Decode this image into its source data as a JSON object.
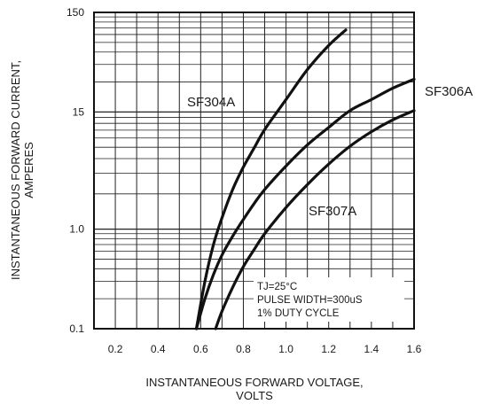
{
  "chart_data": {
    "type": "line",
    "title": "",
    "xlabel_lines": [
      "INSTANTANEOUS FORWARD VOLTAGE,",
      "VOLTS"
    ],
    "ylabel_lines": [
      "INSTANTANEOUS FORWARD CURRENT,",
      "AMPERES"
    ],
    "x_scale": "linear",
    "y_scale": "log",
    "xlim": [
      0.1,
      1.6
    ],
    "ylim": [
      0.1,
      150
    ],
    "x_ticks": [
      0.2,
      0.4,
      0.6,
      0.8,
      1.0,
      1.2,
      1.4,
      1.6
    ],
    "x_tick_labels": [
      "0.2",
      "0.4",
      "0.6",
      "0.8",
      "1.0",
      "1.2",
      "1.4",
      "1.6"
    ],
    "y_ticks": [
      0.1,
      1.0,
      15,
      150
    ],
    "y_tick_labels": [
      "0.1",
      "1.0",
      "15",
      "150"
    ],
    "grid": true,
    "series": [
      {
        "name": "SF304A",
        "x": [
          0.58,
          0.62,
          0.66,
          0.7,
          0.75,
          0.8,
          0.85,
          0.9,
          1.0,
          1.1,
          1.2,
          1.28
        ],
        "y": [
          0.1,
          0.3,
          0.7,
          1.3,
          2.5,
          4.2,
          6.5,
          10,
          20,
          40,
          70,
          100
        ]
      },
      {
        "name": "SF306A",
        "x": [
          0.58,
          0.62,
          0.66,
          0.7,
          0.75,
          0.8,
          0.85,
          0.9,
          1.0,
          1.1,
          1.2,
          1.3,
          1.4,
          1.5,
          1.6
        ],
        "y": [
          0.1,
          0.2,
          0.35,
          0.55,
          0.85,
          1.25,
          1.8,
          2.5,
          4.3,
          7,
          10.5,
          15.5,
          20,
          26,
          32
        ]
      },
      {
        "name": "SF307A",
        "x": [
          0.67,
          0.7,
          0.75,
          0.8,
          0.85,
          0.9,
          1.0,
          1.1,
          1.2,
          1.3,
          1.4,
          1.5,
          1.6
        ],
        "y": [
          0.1,
          0.15,
          0.26,
          0.42,
          0.62,
          0.9,
          1.65,
          2.8,
          4.5,
          6.8,
          9.5,
          12.5,
          15.5
        ]
      }
    ],
    "annotation_lines": [
      "TJ=25°C",
      "PULSE WIDTH=300uS",
      "1% DUTY CYCLE"
    ]
  }
}
